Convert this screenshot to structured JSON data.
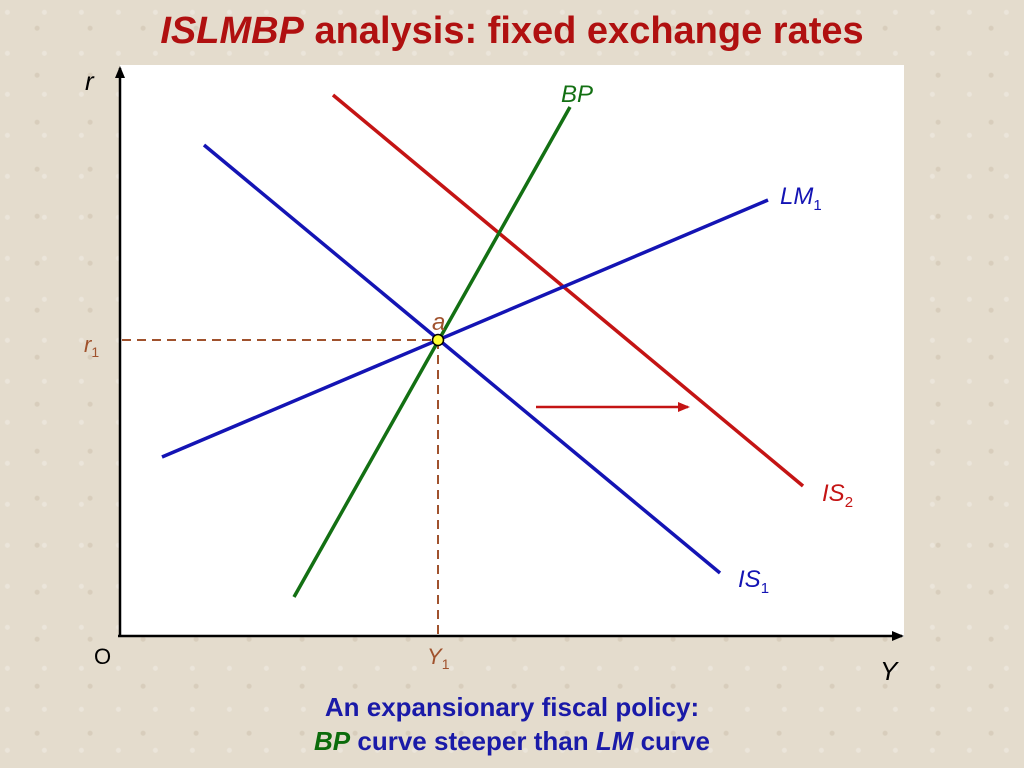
{
  "title": {
    "italic_part": "ISLMBP",
    "rest": " analysis: fixed exchange rates"
  },
  "axes": {
    "y_label": "r",
    "x_label": "Y",
    "origin_label": "O"
  },
  "curves": {
    "bp": {
      "label": "BP",
      "color": "#137013"
    },
    "lm1": {
      "label_main": "LM",
      "label_sub": "1",
      "color": "#1414b4"
    },
    "is1": {
      "label_main": "IS",
      "label_sub": "1",
      "color": "#1414b4"
    },
    "is2": {
      "label_main": "IS",
      "label_sub": "2",
      "color": "#c41414"
    }
  },
  "equilibrium": {
    "point_label": "a",
    "r_label_main": "r",
    "r_label_sub": "1",
    "y_label_main": "Y",
    "y_label_sub": "1",
    "marker_color": "#ffff33",
    "guide_color": "#a0522d"
  },
  "shift_arrow_color": "#c41414",
  "caption": {
    "line1": "An expansionary fiscal policy:",
    "line2_bp": "BP",
    "line2_mid": " curve steeper than ",
    "line2_lm": "LM",
    "line2_end": " curve"
  }
}
